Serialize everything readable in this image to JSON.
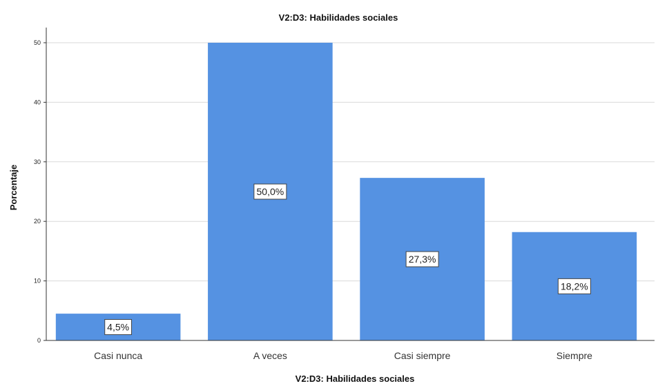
{
  "chart_data": {
    "type": "bar",
    "title": "V2:D3: Habilidades sociales",
    "xlabel": "V2:D3: Habilidades sociales",
    "ylabel": "Porcentaje",
    "categories": [
      "Casi nunca",
      "A veces",
      "Casi siempre",
      "Siempre"
    ],
    "values": [
      4.5,
      50.0,
      27.3,
      18.2
    ],
    "data_labels": [
      "4,5%",
      "50,0%",
      "27,3%",
      "18,2%"
    ],
    "ylim": [
      0,
      50
    ],
    "yticks": [
      0,
      10,
      20,
      30,
      40,
      50
    ],
    "grid": true,
    "legend": "none",
    "colors": {
      "bar": "#5592e2",
      "grid": "#d9d9d9",
      "axis": "#333333"
    }
  }
}
